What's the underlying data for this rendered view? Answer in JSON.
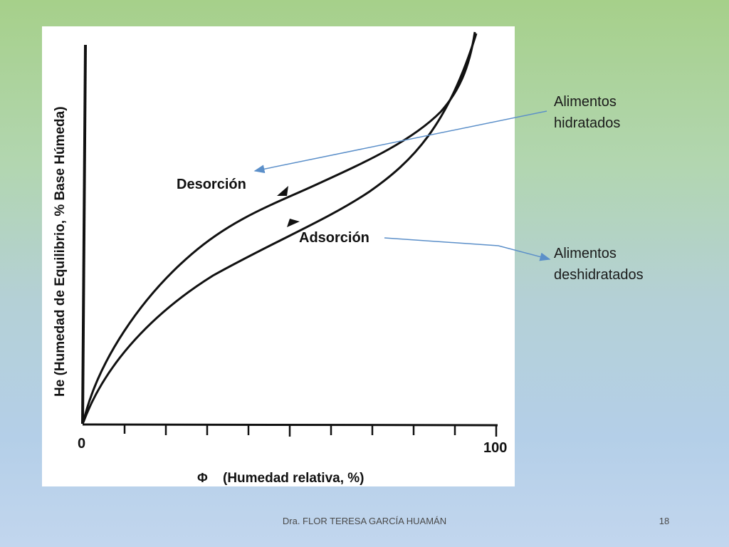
{
  "diagram": {
    "y_axis_label": "He (Humedad de Equilibrio, % Base Húmeda)",
    "x_axis_label": "(Humedad relativa, %)",
    "x_axis_symbol": "Φ",
    "x_tick_start": "0",
    "x_tick_end": "100",
    "desorption_label": "Desorción",
    "adsorption_label": "Adsorción"
  },
  "callouts": {
    "hydrated": {
      "line1": "Alimentos",
      "line2": "hidratados"
    },
    "dehydrated": {
      "line1": "Alimentos",
      "line2": "deshidratados"
    }
  },
  "footer": {
    "author": "Dra. FLOR TERESA GARCÍA HUAMÁN",
    "page_number": "18"
  },
  "colors": {
    "background_top": "#a6d08a",
    "background_bottom": "#c2d6ee",
    "callout_arrow": "#5b8fc9",
    "curve": "#111111"
  }
}
